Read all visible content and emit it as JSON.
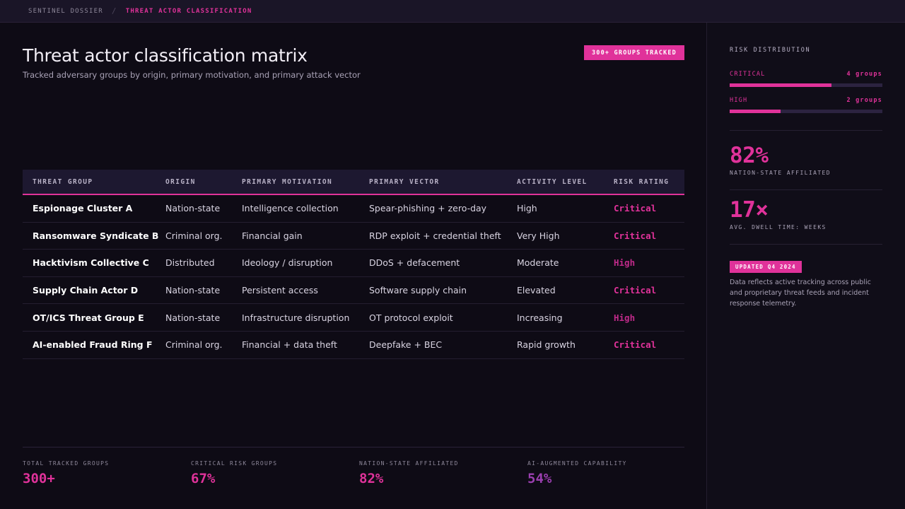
{
  "breadcrumb": {
    "root": "SENTINEL DOSSIER",
    "separator": "/",
    "current": "THREAT ACTOR CLASSIFICATION"
  },
  "header": {
    "title": "Threat actor classification matrix",
    "subtitle": "Tracked adversary groups by origin, primary motivation, and primary attack vector",
    "badge": "300+ GROUPS TRACKED"
  },
  "table": {
    "columns": [
      "THREAT GROUP",
      "ORIGIN",
      "PRIMARY MOTIVATION",
      "PRIMARY VECTOR",
      "ACTIVITY LEVEL",
      "RISK RATING"
    ],
    "rows": [
      {
        "group": "Espionage Cluster A",
        "origin": "Nation-state",
        "motivation": "Intelligence collection",
        "vector": "Spear-phishing + zero-day",
        "activity": "High",
        "risk": "Critical"
      },
      {
        "group": "Ransomware Syndicate B",
        "origin": "Criminal org.",
        "motivation": "Financial gain",
        "vector": "RDP exploit + credential theft",
        "activity": "Very High",
        "risk": "Critical"
      },
      {
        "group": "Hacktivism Collective C",
        "origin": "Distributed",
        "motivation": "Ideology / disruption",
        "vector": "DDoS + defacement",
        "activity": "Moderate",
        "risk": "High"
      },
      {
        "group": "Supply Chain Actor D",
        "origin": "Nation-state",
        "motivation": "Persistent access",
        "vector": "Software supply chain",
        "activity": "Elevated",
        "risk": "Critical"
      },
      {
        "group": "OT/ICS Threat Group E",
        "origin": "Nation-state",
        "motivation": "Infrastructure disruption",
        "vector": "OT protocol exploit",
        "activity": "Increasing",
        "risk": "High"
      },
      {
        "group": "AI-enabled Fraud Ring F",
        "origin": "Criminal org.",
        "motivation": "Financial + data theft",
        "vector": "Deepfake + BEC",
        "activity": "Rapid growth",
        "risk": "Critical"
      }
    ]
  },
  "stats": [
    {
      "label": "TOTAL TRACKED GROUPS",
      "value": "300+",
      "color": "#e0329a"
    },
    {
      "label": "CRITICAL RISK GROUPS",
      "value": "67%",
      "color": "#e0329a"
    },
    {
      "label": "NATION-STATE AFFILIATED",
      "value": "82%",
      "color": "#e0329a"
    },
    {
      "label": "AI-AUGMENTED CAPABILITY",
      "value": "54%",
      "color": "#9b3fb0"
    }
  ],
  "sidebar": {
    "heading": "RISK DISTRIBUTION",
    "distribution": [
      {
        "name": "CRITICAL",
        "count": "4 groups",
        "fraction": 0.667
      },
      {
        "name": "HIGH",
        "count": "2 groups",
        "fraction": 0.333
      }
    ],
    "metrics": [
      {
        "value": "82%",
        "label": "NATION-STATE AFFILIATED"
      },
      {
        "value": "17×",
        "label": "AVG. DWELL TIME: WEEKS"
      }
    ],
    "updated_badge": "UPDATED Q4 2024",
    "note": "Data reflects active tracking across public and proprietary threat feeds and incident response telemetry."
  },
  "colors": {
    "accent": "#e0329a",
    "background": "#0e0b15",
    "secondary_accent": "#9b3fb0"
  }
}
